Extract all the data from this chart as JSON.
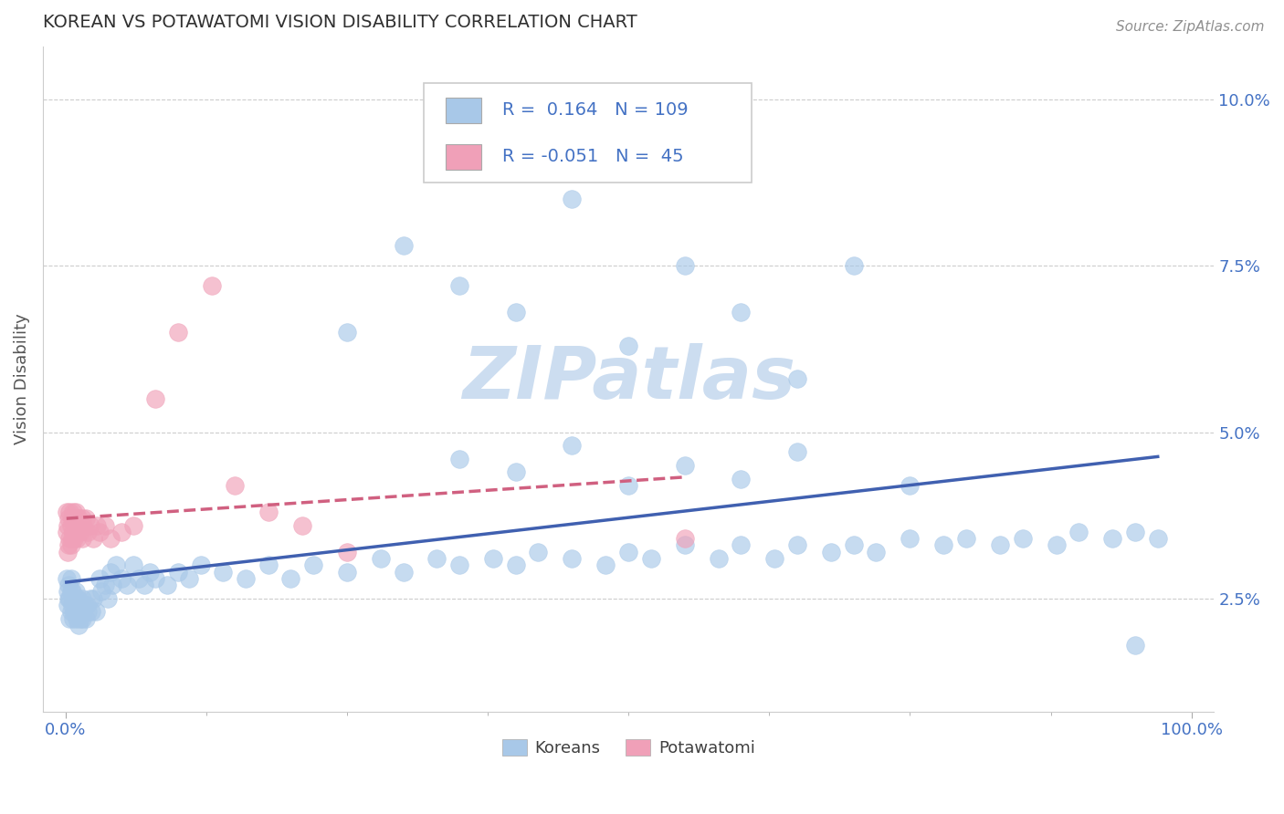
{
  "title": "KOREAN VS POTAWATOMI VISION DISABILITY CORRELATION CHART",
  "source_text": "Source: ZipAtlas.com",
  "ylabel": "Vision Disability",
  "xlim": [
    -0.02,
    1.02
  ],
  "ylim": [
    0.008,
    0.108
  ],
  "yticks": [
    0.025,
    0.05,
    0.075,
    0.1
  ],
  "ytick_labels": [
    "2.5%",
    "5.0%",
    "7.5%",
    "10.0%"
  ],
  "xtick_labels": [
    "0.0%",
    "100.0%"
  ],
  "korean_color": "#a8c8e8",
  "potawatomi_color": "#f0a0b8",
  "korean_line_color": "#4060b0",
  "potawatomi_line_color": "#d06080",
  "korean_R": 0.164,
  "korean_N": 109,
  "potawatomi_R": -0.051,
  "potawatomi_N": 45,
  "title_color": "#303030",
  "source_color": "#909090",
  "axis_color": "#4472c4",
  "watermark_text": "ZIPatlas",
  "watermark_color": "#ccddf0",
  "legend_R_color": "#4472c4",
  "legend_R2_color": "#d06080",
  "background_color": "#ffffff",
  "grid_color": "#cccccc",
  "korean_scatter_x": [
    0.001,
    0.002,
    0.002,
    0.003,
    0.003,
    0.004,
    0.004,
    0.005,
    0.005,
    0.005,
    0.006,
    0.006,
    0.007,
    0.007,
    0.008,
    0.008,
    0.009,
    0.009,
    0.01,
    0.01,
    0.011,
    0.011,
    0.012,
    0.012,
    0.013,
    0.014,
    0.015,
    0.015,
    0.016,
    0.017,
    0.018,
    0.019,
    0.02,
    0.022,
    0.023,
    0.025,
    0.027,
    0.03,
    0.032,
    0.035,
    0.038,
    0.04,
    0.042,
    0.045,
    0.05,
    0.055,
    0.06,
    0.065,
    0.07,
    0.075,
    0.08,
    0.09,
    0.1,
    0.11,
    0.12,
    0.14,
    0.16,
    0.18,
    0.2,
    0.22,
    0.25,
    0.28,
    0.3,
    0.33,
    0.35,
    0.38,
    0.4,
    0.42,
    0.45,
    0.48,
    0.5,
    0.52,
    0.55,
    0.58,
    0.6,
    0.63,
    0.65,
    0.68,
    0.7,
    0.72,
    0.75,
    0.78,
    0.8,
    0.83,
    0.85,
    0.88,
    0.9,
    0.93,
    0.95,
    0.97,
    0.35,
    0.4,
    0.45,
    0.5,
    0.55,
    0.6,
    0.65,
    0.25,
    0.3,
    0.35,
    0.4,
    0.45,
    0.5,
    0.55,
    0.6,
    0.65,
    0.7,
    0.75,
    0.95
  ],
  "korean_scatter_y": [
    0.028,
    0.026,
    0.024,
    0.025,
    0.027,
    0.022,
    0.025,
    0.023,
    0.026,
    0.028,
    0.024,
    0.026,
    0.022,
    0.025,
    0.023,
    0.025,
    0.024,
    0.026,
    0.022,
    0.025,
    0.023,
    0.025,
    0.021,
    0.024,
    0.022,
    0.024,
    0.022,
    0.025,
    0.023,
    0.024,
    0.022,
    0.024,
    0.023,
    0.025,
    0.023,
    0.025,
    0.023,
    0.028,
    0.026,
    0.027,
    0.025,
    0.029,
    0.027,
    0.03,
    0.028,
    0.027,
    0.03,
    0.028,
    0.027,
    0.029,
    0.028,
    0.027,
    0.029,
    0.028,
    0.03,
    0.029,
    0.028,
    0.03,
    0.028,
    0.03,
    0.029,
    0.031,
    0.029,
    0.031,
    0.03,
    0.031,
    0.03,
    0.032,
    0.031,
    0.03,
    0.032,
    0.031,
    0.033,
    0.031,
    0.033,
    0.031,
    0.033,
    0.032,
    0.033,
    0.032,
    0.034,
    0.033,
    0.034,
    0.033,
    0.034,
    0.033,
    0.035,
    0.034,
    0.035,
    0.034,
    0.046,
    0.044,
    0.048,
    0.042,
    0.045,
    0.043,
    0.047,
    0.065,
    0.078,
    0.072,
    0.068,
    0.085,
    0.063,
    0.075,
    0.068,
    0.058,
    0.075,
    0.042,
    0.018
  ],
  "potawatomi_scatter_x": [
    0.001,
    0.001,
    0.002,
    0.002,
    0.003,
    0.003,
    0.004,
    0.004,
    0.005,
    0.005,
    0.006,
    0.006,
    0.007,
    0.007,
    0.008,
    0.008,
    0.009,
    0.009,
    0.01,
    0.01,
    0.011,
    0.012,
    0.013,
    0.014,
    0.015,
    0.015,
    0.016,
    0.018,
    0.02,
    0.022,
    0.025,
    0.028,
    0.03,
    0.035,
    0.04,
    0.05,
    0.06,
    0.08,
    0.1,
    0.13,
    0.15,
    0.18,
    0.21,
    0.25,
    0.55
  ],
  "potawatomi_scatter_y": [
    0.035,
    0.038,
    0.032,
    0.036,
    0.033,
    0.037,
    0.034,
    0.038,
    0.033,
    0.036,
    0.034,
    0.037,
    0.035,
    0.038,
    0.034,
    0.037,
    0.035,
    0.038,
    0.034,
    0.037,
    0.036,
    0.037,
    0.035,
    0.036,
    0.034,
    0.037,
    0.036,
    0.037,
    0.035,
    0.036,
    0.034,
    0.036,
    0.035,
    0.036,
    0.034,
    0.035,
    0.036,
    0.055,
    0.065,
    0.072,
    0.042,
    0.038,
    0.036,
    0.032,
    0.034
  ]
}
